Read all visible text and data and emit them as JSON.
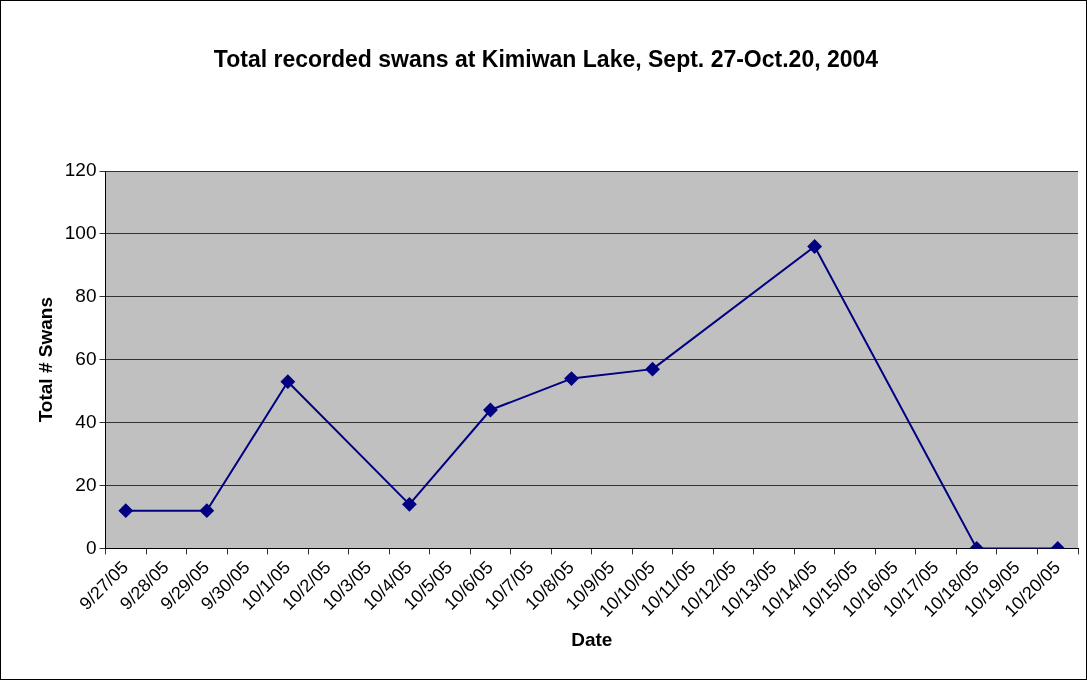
{
  "chart_data": {
    "type": "line",
    "title": "Total recorded swans at Kimiwan Lake, Sept. 27-Oct.20, 2004",
    "xlabel": "Date",
    "ylabel": "Total # Swans",
    "categories": [
      "9/27/05",
      "9/28/05",
      "9/29/05",
      "9/30/05",
      "10/1/05",
      "10/2/05",
      "10/3/05",
      "10/4/05",
      "10/5/05",
      "10/6/05",
      "10/7/05",
      "10/8/05",
      "10/9/05",
      "10/10/05",
      "10/11/05",
      "10/12/05",
      "10/13/05",
      "10/14/05",
      "10/15/05",
      "10/16/05",
      "10/17/05",
      "10/18/05",
      "10/19/05",
      "10/20/05"
    ],
    "series": [
      {
        "color": "#000080",
        "values": [
          12,
          null,
          12,
          null,
          53,
          null,
          null,
          14,
          null,
          44,
          null,
          54,
          null,
          57,
          null,
          null,
          null,
          96,
          null,
          null,
          null,
          0,
          null,
          0
        ]
      }
    ],
    "ylim": [
      0,
      120
    ],
    "yticks": [
      0,
      20,
      40,
      60,
      80,
      100,
      120
    ],
    "grid": "y",
    "legend": false,
    "marker": "diamond",
    "line_style": "solid"
  }
}
